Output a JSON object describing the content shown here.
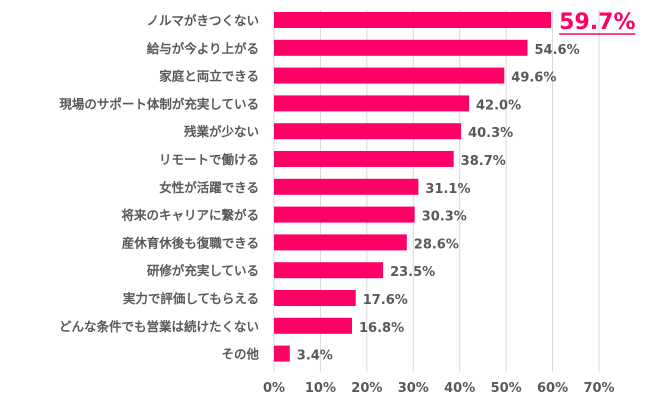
{
  "chart_data": {
    "type": "bar",
    "orientation": "horizontal",
    "categories": [
      "ノルマがきつくない",
      "給与が今より上がる",
      "家庭と両立できる",
      "現場のサポート体制が充実している",
      "残業が少ない",
      "リモートで働ける",
      "女性が活躍できる",
      "将来のキャリアに繋がる",
      "産休育休後も復職できる",
      "研修が充実している",
      "実力で評価してもらえる",
      "どんな条件でも営業は続けたくない",
      "その他"
    ],
    "values": [
      59.7,
      54.6,
      49.6,
      42.0,
      40.3,
      38.7,
      31.1,
      30.3,
      28.6,
      23.5,
      17.6,
      16.8,
      3.4
    ],
    "data_labels": [
      "59.7%",
      "54.6%",
      "49.6%",
      "42.0%",
      "40.3%",
      "38.7%",
      "31.1%",
      "30.3%",
      "28.6%",
      "23.5%",
      "17.6%",
      "16.8%",
      "3.4%"
    ],
    "xlim": [
      0,
      70
    ],
    "x_ticks": [
      "0%",
      "10%",
      "20%",
      "30%",
      "40%",
      "50%",
      "60%",
      "70%"
    ],
    "grid": "vertical",
    "bar_color": "#FF0066",
    "highlight_label_color": "#FF0066",
    "title": "",
    "xlabel": "",
    "ylabel": ""
  }
}
